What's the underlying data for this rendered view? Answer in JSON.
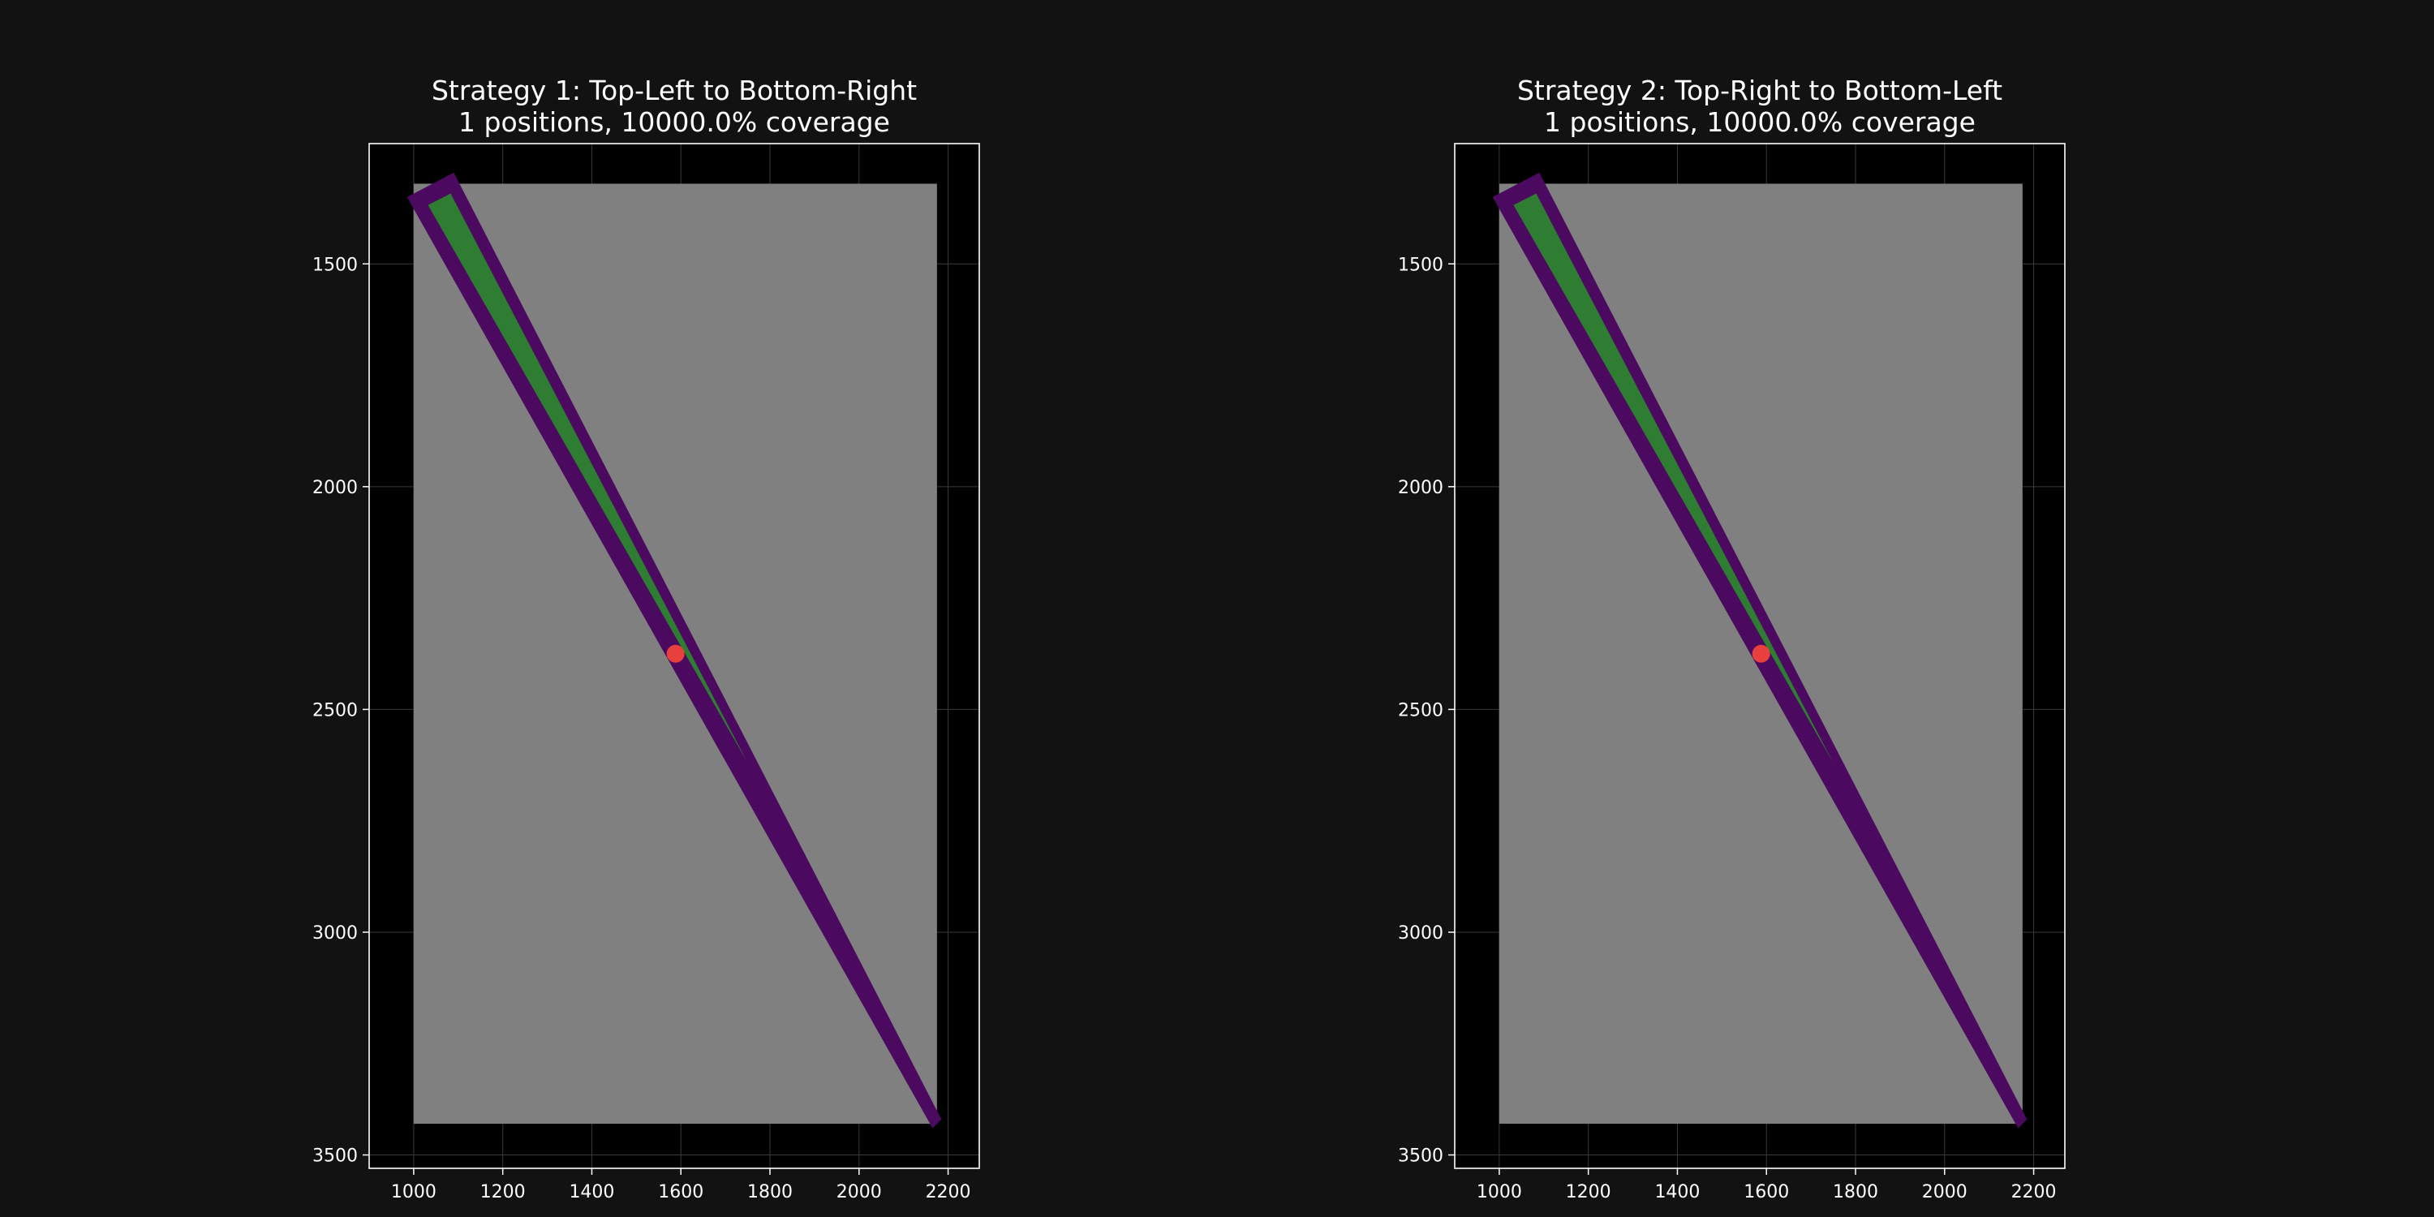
{
  "chart_data": [
    {
      "type": "scatter",
      "title_line1": "Strategy 1: Top-Left to Bottom-Right",
      "title_line2": "1 positions, 10000.0% coverage",
      "xlabel": "",
      "ylabel": "",
      "xlim": [
        900,
        2270
      ],
      "ylim": [
        3530,
        1230
      ],
      "y_inverted": true,
      "grid": true,
      "xticks": [
        1000,
        1200,
        1400,
        1600,
        1800,
        2000,
        2200
      ],
      "yticks": [
        1500,
        2000,
        2500,
        3000,
        3500
      ],
      "board": {
        "x_min": 1000,
        "x_max": 2175,
        "y_min": 1320,
        "y_max": 3430,
        "color": "#808080"
      },
      "outer_band": {
        "polygon": [
          [
            985,
            1350
          ],
          [
            1090,
            1295
          ],
          [
            2185,
            3420
          ],
          [
            2165,
            3440
          ]
        ],
        "color": "#4b0a5f"
      },
      "inner_wedge": {
        "polygon": [
          [
            1032,
            1368
          ],
          [
            1083,
            1342
          ],
          [
            1750,
            2620
          ]
        ],
        "color": "#2e7d32"
      },
      "marker": {
        "x": 1588,
        "y": 2375,
        "color": "#e8403e"
      },
      "background": "#000000"
    },
    {
      "type": "scatter",
      "title_line1": "Strategy 2: Top-Right to Bottom-Left",
      "title_line2": "1 positions, 10000.0% coverage",
      "xlabel": "",
      "ylabel": "",
      "xlim": [
        900,
        2270
      ],
      "ylim": [
        3530,
        1230
      ],
      "y_inverted": true,
      "grid": true,
      "xticks": [
        1000,
        1200,
        1400,
        1600,
        1800,
        2000,
        2200
      ],
      "yticks": [
        1500,
        2000,
        2500,
        3000,
        3500
      ],
      "board": {
        "x_min": 1000,
        "x_max": 2175,
        "y_min": 1320,
        "y_max": 3430,
        "color": "#808080"
      },
      "outer_band": {
        "polygon": [
          [
            985,
            1350
          ],
          [
            1090,
            1295
          ],
          [
            2185,
            3420
          ],
          [
            2165,
            3440
          ]
        ],
        "color": "#4b0a5f"
      },
      "inner_wedge": {
        "polygon": [
          [
            1032,
            1368
          ],
          [
            1083,
            1342
          ],
          [
            1750,
            2620
          ]
        ],
        "color": "#2e7d32"
      },
      "marker": {
        "x": 1588,
        "y": 2375,
        "color": "#e8403e"
      },
      "background": "#000000"
    }
  ],
  "colors": {
    "figure_background": "#121212",
    "axes_background": "#000000",
    "axes_border": "#ffffff",
    "grid": "#3a3a3a",
    "text": "#ffffff"
  }
}
